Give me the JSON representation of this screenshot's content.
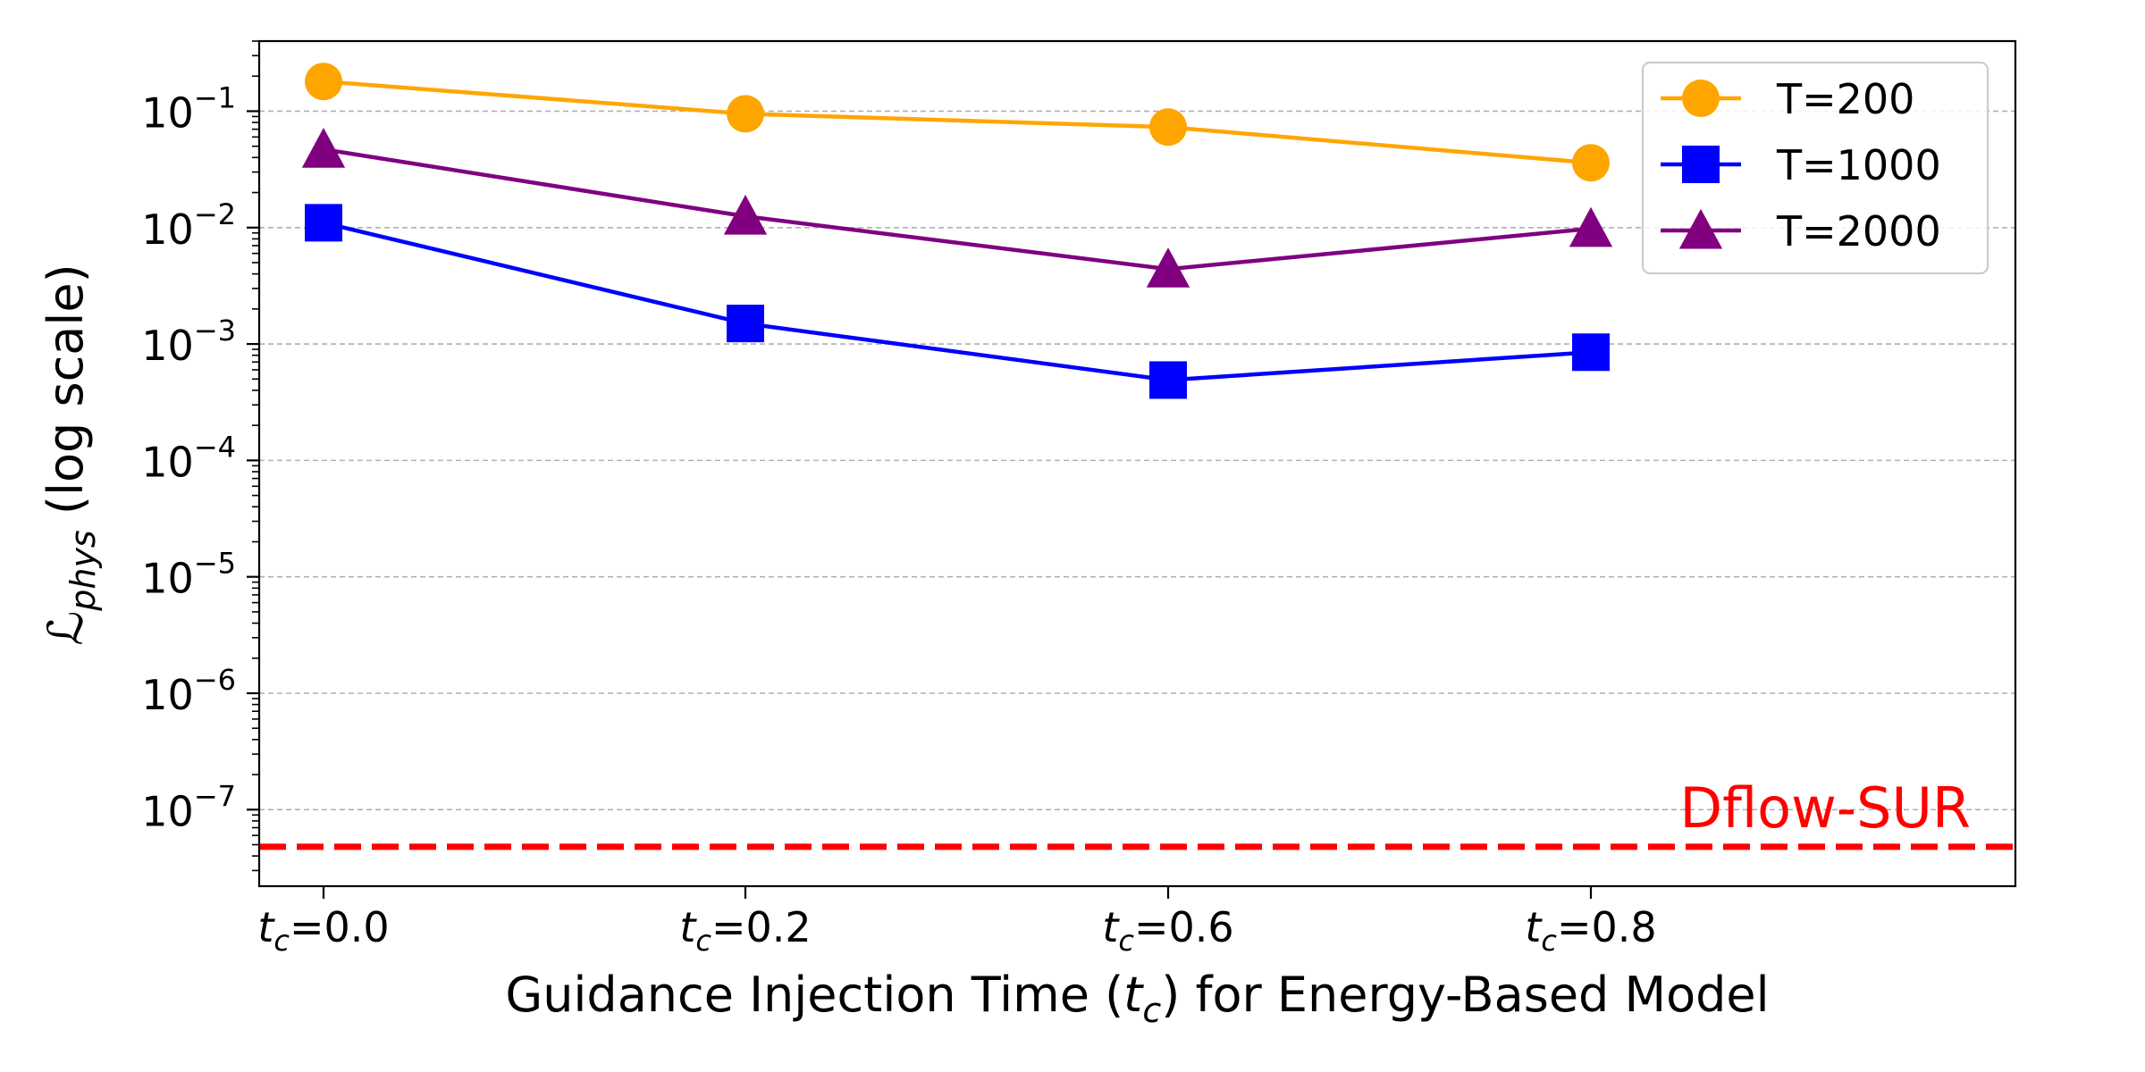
{
  "chart_data": {
    "type": "line",
    "title": "",
    "categories": [
      "0.0",
      "0.2",
      "0.6",
      "0.8"
    ],
    "x_tick_prefix": "t",
    "x_tick_subscript": "c",
    "x_tick_equals": "=",
    "xlabel": {
      "before": "Guidance Injection Time (",
      "var": "t",
      "sub": "c",
      "after": ") for Energy-Based Model"
    },
    "ylabel": {
      "var": "ℒ",
      "sub": "phys",
      "after": " (log scale)"
    },
    "yscale": "log",
    "ylim": [
      2.2e-08,
      0.4
    ],
    "y_ticks": [
      {
        "value": 1e-07,
        "base": "10",
        "exp": "−7"
      },
      {
        "value": 1e-06,
        "base": "10",
        "exp": "−6"
      },
      {
        "value": 1e-05,
        "base": "10",
        "exp": "−5"
      },
      {
        "value": 0.0001,
        "base": "10",
        "exp": "−4"
      },
      {
        "value": 0.001,
        "base": "10",
        "exp": "−3"
      },
      {
        "value": 0.01,
        "base": "10",
        "exp": "−2"
      },
      {
        "value": 0.1,
        "base": "10",
        "exp": "−1"
      }
    ],
    "grid": "y-major-dashed",
    "legend_position": "top-right",
    "series": [
      {
        "name": "T=200",
        "color": "#ffa500",
        "marker": "circle",
        "values": [
          0.18,
          0.095,
          0.073,
          0.036
        ]
      },
      {
        "name": "T=1000",
        "color": "#0000ff",
        "marker": "square",
        "values": [
          0.011,
          0.0015,
          0.00049,
          0.00085
        ]
      },
      {
        "name": "T=2000",
        "color": "#800080",
        "marker": "triangle",
        "values": [
          0.047,
          0.0125,
          0.0044,
          0.0098
        ]
      }
    ],
    "reference_line": {
      "label": "Dflow-SUR",
      "value": 4.8e-08,
      "color": "#ff0000",
      "style": "dashed"
    }
  }
}
